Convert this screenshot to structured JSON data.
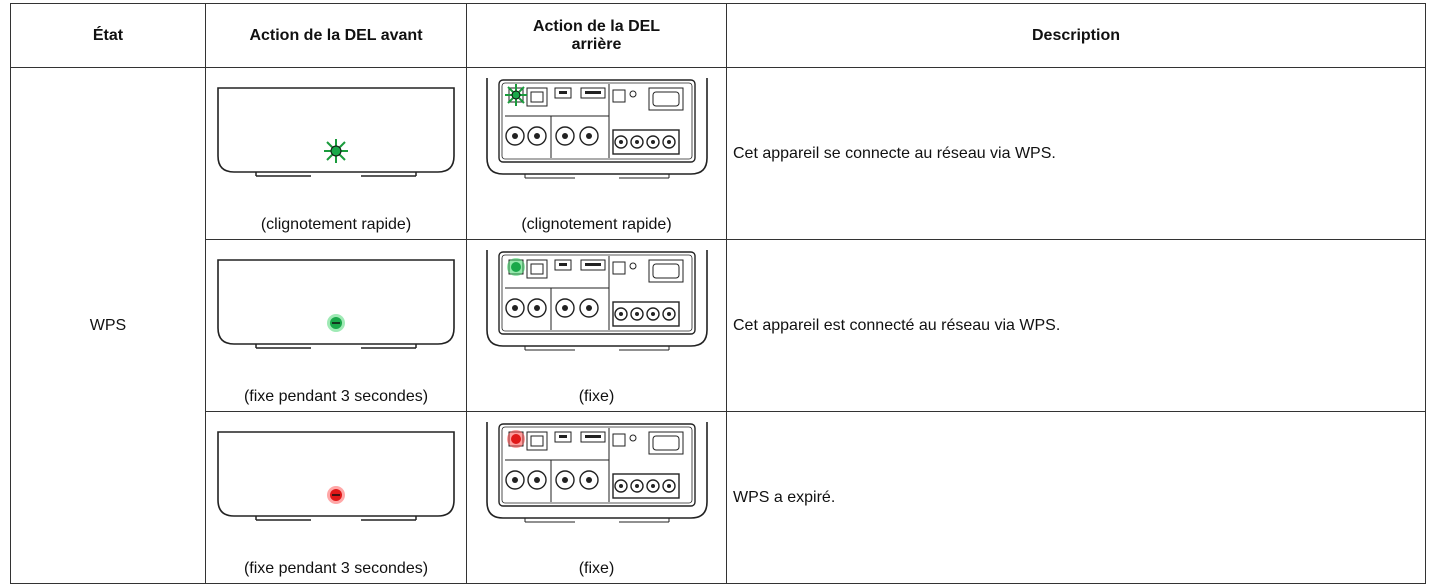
{
  "table": {
    "headers": [
      "État",
      "Action de la DEL avant",
      "Action de la DEL arrière",
      "Description"
    ],
    "state": "WPS",
    "rows": [
      {
        "front_caption": "(clignotement rapide)",
        "rear_caption": "(clignotement rapide)",
        "description": "Cet appareil se connecte au réseau via WPS."
      },
      {
        "front_caption": "(fixe pendant 3 secondes)",
        "rear_caption": "(fixe)",
        "description": "Cet appareil est connecté au réseau via WPS."
      },
      {
        "front_caption": "(fixe pendant 3 secondes)",
        "rear_caption": "(fixe)",
        "description": "WPS a expiré."
      }
    ]
  }
}
